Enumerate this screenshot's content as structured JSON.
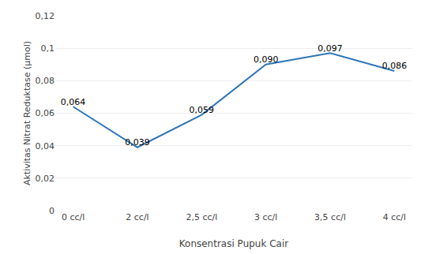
{
  "chart_data": {
    "type": "line",
    "categories": [
      "0 cc/l",
      "2 cc/l",
      "2,5 cc/l",
      "3 cc/l",
      "3,5 cc/l",
      "4 cc/l"
    ],
    "values": [
      0.064,
      0.039,
      0.059,
      0.09,
      0.097,
      0.086
    ],
    "value_labels": [
      "0,064",
      "0,039",
      "0,059",
      "0,090",
      "0,097",
      "0,086"
    ],
    "data_labels": true,
    "color": "#2E75B6",
    "xlabel": "Konsentrasi Pupuk Cair",
    "ylabel": "Aktivitas Nitrat Reduktase (µmol)",
    "ylim": [
      0,
      0.12
    ],
    "yticks": [
      0,
      {
        "value": 0.02,
        "label": "0,02"
      },
      {
        "value": 0.04,
        "label": "0,04"
      },
      {
        "value": 0.06,
        "label": "0,06"
      },
      {
        "value": 0.08,
        "label": "0,08"
      },
      {
        "value": 0.1,
        "label": "0,1"
      },
      {
        "value": 0.12,
        "label": "0,12"
      }
    ],
    "grid": true
  }
}
